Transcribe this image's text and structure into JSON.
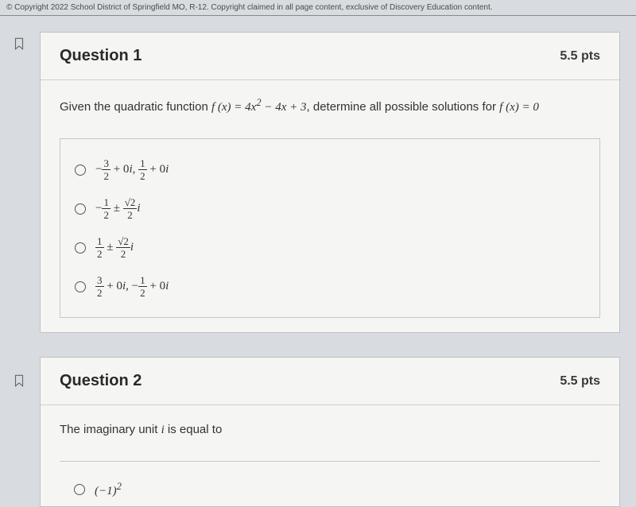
{
  "copyright": "© Copyright 2022 School District of Springfield MO, R-12. Copyright claimed in all page content, exclusive of Discovery Education content.",
  "colors": {
    "page_bg": "#d8dce0",
    "card_bg": "#f5f5f3",
    "card_border": "#c0c0c0",
    "text_primary": "#2a2a2a",
    "text_body": "#333"
  },
  "question1": {
    "title": "Question 1",
    "points": "5.5 pts",
    "prompt_prefix": "Given the quadratic function ",
    "prompt_function": "f (x) = 4x² − 4x + 3",
    "prompt_suffix": ", determine all possible solutions for ",
    "prompt_equation": "f (x) = 0",
    "options": [
      {
        "html": "−<span class='frac'><span class='num'>3</span><span class='den'>2</span></span> + 0<i>i</i>, <span class='frac'><span class='num'>1</span><span class='den'>2</span></span> + 0<i>i</i>"
      },
      {
        "html": "−<span class='frac'><span class='num'>1</span><span class='den'>2</span></span> ± <span class='frac'><span class='num'>√2</span><span class='den'>2</span></span><i>i</i>"
      },
      {
        "html": "<span class='frac'><span class='num'>1</span><span class='den'>2</span></span> ± <span class='frac'><span class='num'>√2</span><span class='den'>2</span></span><i>i</i>"
      },
      {
        "html": "<span class='frac'><span class='num'>3</span><span class='den'>2</span></span> + 0<i>i</i>, −<span class='frac'><span class='num'>1</span><span class='den'>2</span></span> + 0<i>i</i>"
      }
    ]
  },
  "question2": {
    "title": "Question 2",
    "points": "5.5 pts",
    "prompt": "The imaginary unit i is equal to",
    "option1": "(−1)²"
  }
}
